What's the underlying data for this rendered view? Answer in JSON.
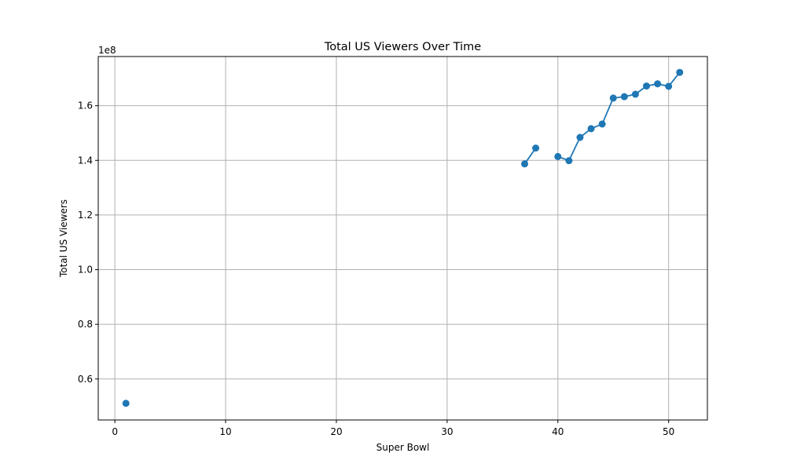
{
  "chart_data": {
    "type": "line",
    "title": "Total US Viewers Over Time",
    "xlabel": "Super Bowl",
    "ylabel": "Total US Viewers",
    "y_offset_label": "1e8",
    "xlim": [
      -1.5,
      53.5
    ],
    "ylim": [
      0.45,
      1.78
    ],
    "x_ticks": [
      0,
      10,
      20,
      30,
      40,
      50
    ],
    "x_tick_labels": [
      "0",
      "10",
      "20",
      "30",
      "40",
      "50"
    ],
    "y_ticks": [
      0.6,
      0.8,
      1.0,
      1.2,
      1.4,
      1.6
    ],
    "y_tick_labels": [
      "0.6",
      "0.8",
      "1.0",
      "1.2",
      "1.4",
      "1.6"
    ],
    "grid": true,
    "marker": "circle",
    "color": "#1f77b4",
    "series": [
      {
        "x": [
          1,
          37,
          38,
          40,
          41,
          42,
          43,
          44,
          45,
          46,
          47,
          48,
          49,
          50,
          51
        ],
        "y": [
          0.511,
          1.387,
          1.445,
          1.414,
          1.399,
          1.484,
          1.516,
          1.533,
          1.628,
          1.633,
          1.642,
          1.672,
          1.68,
          1.671,
          1.722
        ],
        "segments": [
          [
            0,
            0
          ],
          [
            1,
            2
          ],
          [
            3,
            14
          ]
        ]
      }
    ]
  }
}
